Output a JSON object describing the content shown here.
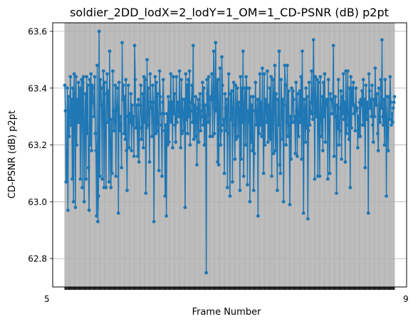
{
  "chart_data": {
    "type": "line",
    "title": "soldier_2DD_lodX=2_lodY=1_OM=1_CD-PSNR (dB) p2pt",
    "xlabel": "Frame Number",
    "ylabel": "CD-PSNR (dB) p2pt",
    "ylim": [
      62.7,
      63.63
    ],
    "yticks": [
      62.8,
      63.0,
      63.2,
      63.4,
      63.6
    ],
    "ytick_labels": [
      "62.8",
      "63.0",
      "63.2",
      "63.4",
      "63.6"
    ],
    "x_tick_edge_labels": [
      "5",
      "9"
    ],
    "grid": true,
    "series": [
      {
        "color": "#1f77b4",
        "values": [
          63.41,
          63.32,
          63.07,
          63.07,
          63.4,
          62.97,
          63.37,
          63.23,
          63.3,
          63.44,
          63.27,
          63.36,
          63.08,
          63.4,
          63.0,
          63.45,
          63.38,
          62.98,
          63.44,
          63.2,
          63.36,
          63.28,
          63.42,
          63.28,
          63.4,
          63.08,
          63.39,
          63.43,
          63.05,
          63.42,
          63.44,
          63.0,
          63.27,
          63.38,
          63.08,
          63.44,
          63.24,
          63.41,
          63.12,
          62.97,
          63.43,
          63.2,
          63.45,
          63.18,
          63.41,
          63.4,
          63.35,
          63.3,
          63.44,
          63.24,
          63.18,
          62.95,
          63.48,
          62.93,
          63.02,
          63.6,
          63.09,
          63.43,
          63.4,
          63.34,
          63.08,
          63.4,
          63.46,
          63.05,
          63.42,
          63.28,
          63.05,
          63.38,
          63.45,
          63.28,
          63.39,
          63.07,
          63.53,
          63.19,
          63.05,
          63.29,
          63.1,
          63.46,
          63.32,
          63.25,
          63.29,
          63.41,
          63.09,
          63.32,
          63.4,
          63.33,
          62.96,
          63.42,
          63.25,
          63.3,
          63.27,
          63.12,
          63.56,
          63.36,
          63.41,
          63.24,
          63.37,
          63.22,
          63.43,
          63.18,
          63.04,
          63.3,
          63.41,
          63.19,
          63.31,
          63.28,
          63.38,
          63.18,
          63.34,
          63.27,
          63.3,
          63.16,
          63.55,
          63.43,
          63.26,
          63.34,
          63.27,
          63.16,
          63.36,
          63.14,
          63.26,
          63.34,
          63.41,
          63.22,
          63.26,
          63.38,
          63.19,
          63.44,
          63.28,
          63.43,
          63.03,
          63.26,
          63.5,
          63.27,
          63.4,
          63.31,
          63.14,
          63.45,
          63.35,
          63.33,
          63.23,
          63.41,
          63.35,
          62.93,
          63.29,
          63.44,
          63.24,
          63.42,
          63.25,
          63.38,
          63.28,
          63.11,
          63.46,
          63.37,
          63.31,
          63.27,
          63.09,
          63.35,
          63.43,
          63.31,
          63.25,
          63.02,
          63.27,
          62.95,
          63.31,
          63.2,
          63.37,
          63.21,
          63.35,
          63.29,
          63.45,
          63.28,
          63.35,
          63.19,
          63.44,
          63.31,
          63.38,
          63.27,
          63.21,
          63.44,
          63.28,
          63.35,
          63.32,
          63.3,
          63.46,
          63.31,
          63.19,
          63.43,
          63.24,
          63.36,
          63.31,
          63.25,
          63.36,
          62.98,
          63.45,
          63.29,
          63.41,
          63.24,
          63.43,
          63.3,
          63.46,
          63.2,
          63.32,
          63.35,
          63.41,
          63.28,
          63.55,
          63.22,
          63.34,
          63.23,
          63.37,
          63.31,
          63.13,
          63.33,
          63.36,
          63.21,
          63.34,
          63.38,
          63.25,
          63.3,
          63.32,
          63.42,
          63.27,
          63.4,
          63.2,
          63.34,
          63.3,
          62.75,
          63.43,
          63.38,
          63.28,
          63.44,
          63.31,
          63.23,
          63.36,
          63.37,
          63.45,
          63.23,
          63.38,
          63.53,
          63.24,
          63.33,
          63.56,
          63.32,
          63.42,
          63.14,
          63.43,
          63.13,
          63.31,
          63.47,
          63.2,
          63.25,
          63.51,
          63.41,
          63.27,
          63.29,
          63.1,
          63.38,
          63.33,
          63.25,
          63.36,
          63.05,
          63.34,
          63.45,
          63.24,
          63.02,
          63.38,
          63.29,
          63.39,
          63.07,
          63.33,
          63.42,
          63.27,
          63.15,
          63.41,
          63.22,
          63.33,
          63.4,
          63.23,
          63.35,
          63.33,
          63.04,
          63.44,
          63.15,
          63.4,
          63.28,
          63.53,
          63.09,
          63.33,
          63.4,
          63.2,
          63.44,
          63.4,
          63.06,
          63.32,
          63.28,
          63.4,
          63.0,
          63.37,
          63.21,
          63.34,
          63.18,
          63.37,
          63.04,
          63.17,
          63.32,
          63.42,
          63.27,
          63.31,
          63.36,
          62.95,
          63.36,
          63.24,
          63.45,
          63.27,
          63.35,
          63.23,
          63.47,
          63.25,
          63.1,
          63.45,
          63.2,
          63.36,
          63.34,
          63.28,
          63.46,
          63.21,
          63.34,
          63.23,
          63.4,
          63.22,
          63.44,
          63.09,
          63.3,
          63.43,
          63.17,
          63.38,
          63.48,
          63.18,
          63.38,
          63.21,
          63.04,
          63.36,
          63.27,
          63.53,
          63.13,
          63.1,
          63.43,
          63.35,
          63.22,
          63.36,
          63.0,
          63.34,
          63.48,
          63.41,
          63.2,
          63.28,
          63.48,
          63.23,
          63.39,
          63.27,
          62.99,
          63.3,
          63.15,
          63.4,
          63.28,
          63.39,
          63.36,
          63.28,
          63.3,
          63.17,
          63.42,
          63.32,
          63.16,
          63.38,
          63.23,
          63.3,
          63.39,
          63.28,
          63.44,
          63.15,
          63.53,
          63.32,
          62.96,
          63.36,
          63.33,
          63.21,
          63.4,
          63.26,
          63.37,
          62.94,
          63.25,
          63.42,
          63.27,
          63.32,
          63.35,
          63.46,
          63.31,
          63.29,
          63.57,
          63.39,
          63.08,
          63.44,
          63.3,
          63.31,
          63.43,
          63.09,
          63.42,
          63.28,
          63.09,
          63.44,
          63.31,
          63.23,
          63.37,
          63.18,
          63.42,
          63.3,
          63.45,
          63.21,
          63.36,
          63.34,
          63.36,
          63.08,
          63.43,
          63.28,
          63.1,
          63.38,
          63.36,
          63.36,
          63.31,
          63.36,
          63.55,
          63.16,
          63.33,
          63.37,
          63.3,
          63.03,
          63.34,
          63.26,
          63.43,
          63.2,
          63.25,
          63.33,
          63.39,
          63.15,
          63.37,
          63.31,
          63.45,
          63.29,
          63.35,
          63.14,
          63.46,
          63.24,
          63.31,
          63.46,
          63.27,
          63.22,
          63.4,
          63.05,
          63.44,
          63.26,
          63.4,
          63.34,
          63.42,
          63.31,
          63.34,
          63.25,
          63.4,
          63.32,
          63.33,
          63.19,
          63.3,
          63.23,
          63.35,
          63.23,
          63.36,
          63.34,
          63.39,
          63.27,
          63.43,
          63.27,
          63.36,
          63.12,
          63.41,
          63.29,
          63.35,
          63.34,
          62.96,
          63.45,
          63.39,
          63.33,
          63.36,
          63.3,
          63.41,
          63.27,
          63.21,
          63.36,
          63.3,
          63.47,
          63.35,
          63.34,
          63.38,
          63.24,
          63.18,
          63.4,
          63.29,
          63.28,
          63.43,
          63.33,
          63.57,
          63.3,
          63.27,
          63.36,
          63.2,
          63.43,
          63.31,
          63.02,
          63.37,
          63.26,
          63.18,
          63.37,
          63.29,
          63.44,
          63.35,
          63.27,
          63.31,
          63.28,
          63.33,
          63.35,
          63.37
        ]
      }
    ]
  }
}
